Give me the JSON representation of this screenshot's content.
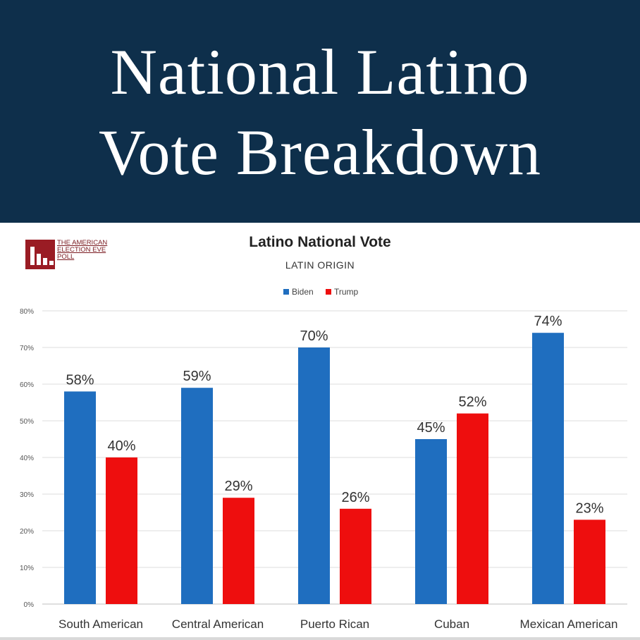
{
  "banner": {
    "line1": "National Latino",
    "line2": "Vote Breakdown"
  },
  "logo": {
    "lines": [
      "THE AMERICAN",
      "ELECTION EVE",
      "POLL"
    ]
  },
  "chart_data": {
    "type": "bar",
    "title": "Latino National Vote",
    "subtitle": "LATIN ORIGIN",
    "categories": [
      "South American",
      "Central American",
      "Puerto Rican",
      "Cuban",
      "Mexican American"
    ],
    "series": [
      {
        "name": "Biden",
        "color": "#1f6ebf",
        "values": [
          58,
          59,
          70,
          45,
          74
        ],
        "labels": [
          "58%",
          "59%",
          "70%",
          "45%",
          "74%"
        ]
      },
      {
        "name": "Trump",
        "color": "#ee0e0e",
        "values": [
          40,
          29,
          26,
          52,
          23
        ],
        "labels": [
          "40%",
          "29%",
          "26%",
          "52%",
          "23%"
        ]
      }
    ],
    "ylim": [
      0,
      80
    ],
    "yticks": [
      0,
      10,
      20,
      30,
      40,
      50,
      60,
      70,
      80
    ],
    "ytick_labels": [
      "0%",
      "10%",
      "20%",
      "30%",
      "40%",
      "50%",
      "60%",
      "70%",
      "80%"
    ],
    "grid": true,
    "legend": "top-center",
    "xlabel": "",
    "ylabel": ""
  }
}
